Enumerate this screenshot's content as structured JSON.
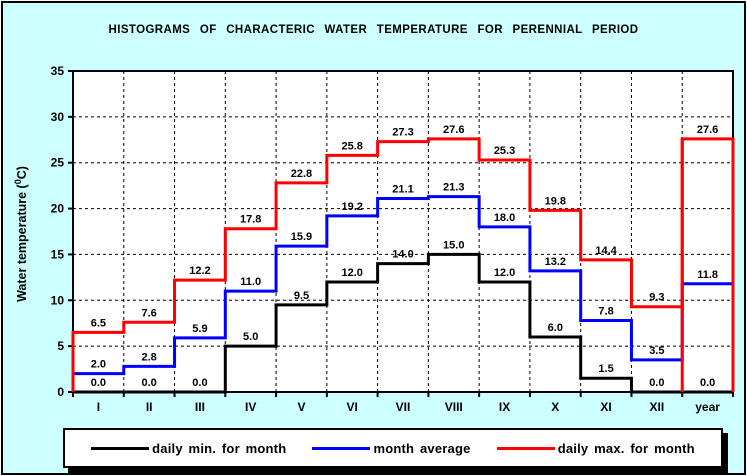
{
  "y_axis": {
    "label_prefix": "Water temperature (",
    "label_sup": "0",
    "label_suffix": "C)"
  },
  "chart_data": {
    "type": "line",
    "subtype": "step-histogram",
    "title": "HISTOGRAMS OF CHARACTERIC WATER TEMPERATURE FOR PERENNIAL PERIOD",
    "xlabel": "",
    "ylabel": "Water temperature (0C)",
    "ylim": [
      0,
      35
    ],
    "ytick_step": 5,
    "grid": true,
    "grid_style": "dashed",
    "legend_position": "bottom",
    "plot_bg": "#FFFFFF",
    "page_bg": "#CCFFFF",
    "categories": [
      "I",
      "II",
      "III",
      "IV",
      "V",
      "VI",
      "VII",
      "VIII",
      "IX",
      "X",
      "XI",
      "XII",
      "year"
    ],
    "series": [
      {
        "name": "daily min. for month",
        "color": "#000000",
        "values": [
          0.0,
          0.0,
          0.0,
          5.0,
          9.5,
          12.0,
          14.0,
          15.0,
          12.0,
          6.0,
          1.5,
          0.0,
          0.0
        ]
      },
      {
        "name": "month average",
        "color": "#0000FF",
        "values": [
          2.0,
          2.8,
          5.9,
          11.0,
          15.9,
          19.2,
          21.1,
          21.3,
          18.0,
          13.2,
          7.8,
          3.5,
          11.8
        ]
      },
      {
        "name": "daily max. for month",
        "color": "#FF0000",
        "values": [
          6.5,
          7.6,
          12.2,
          17.8,
          22.8,
          25.8,
          27.3,
          27.6,
          25.3,
          19.8,
          14.4,
          9.3,
          27.6
        ],
        "left_edge_drop_to_zero": true,
        "year_bar": true
      }
    ]
  }
}
